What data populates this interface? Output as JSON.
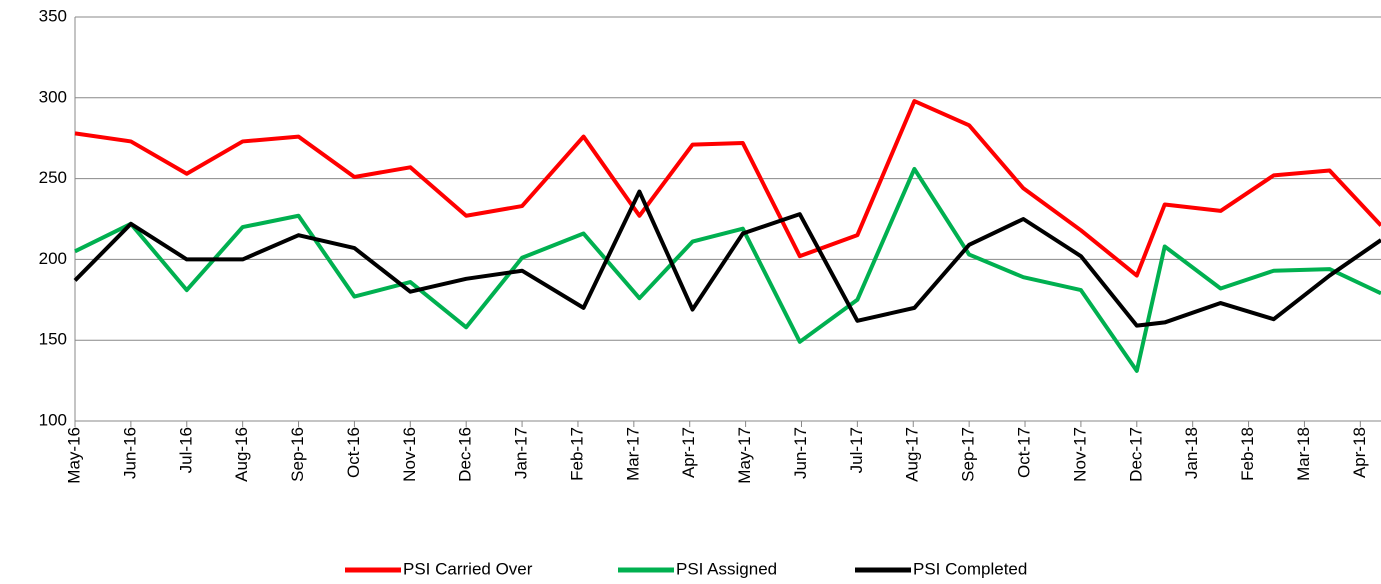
{
  "chart_data": {
    "type": "line",
    "x": [
      0,
      1,
      2,
      3,
      4,
      5,
      6,
      7,
      8,
      9.1,
      10.1,
      11.05,
      11.95,
      12.97,
      14,
      15.02,
      16,
      16.97,
      18,
      19,
      19.5,
      20.5,
      21.45,
      22.45,
      23.37
    ],
    "series": [
      {
        "name": "PSI Carried Over",
        "color": "#ff0000",
        "values": [
          278,
          273,
          253,
          273,
          276,
          251,
          257,
          227,
          233,
          276,
          227,
          271,
          272,
          202,
          215,
          298,
          283,
          244,
          218,
          190,
          234,
          230,
          252,
          255,
          221
        ]
      },
      {
        "name": "PSI Assigned",
        "color": "#00b050",
        "values": [
          205,
          222,
          181,
          220,
          227,
          177,
          186,
          158,
          201,
          216,
          176,
          211,
          219,
          149,
          175,
          256,
          203,
          189,
          181,
          131,
          208,
          182,
          193,
          194,
          179
        ]
      },
      {
        "name": "PSI Completed",
        "color": "#000000",
        "values": [
          187,
          222,
          200,
          200,
          215,
          207,
          180,
          188,
          193,
          170,
          242,
          169,
          216,
          228,
          162,
          170,
          209,
          225,
          202,
          159,
          161,
          173,
          163,
          190,
          212
        ]
      }
    ],
    "xlim": [
      0,
      23.37
    ],
    "xticks": [
      {
        "value": 0,
        "label": "May-16"
      },
      {
        "value": 1,
        "label": "Jun-16"
      },
      {
        "value": 2,
        "label": "Jul-16"
      },
      {
        "value": 3,
        "label": "Aug-16"
      },
      {
        "value": 4,
        "label": "Sep-16"
      },
      {
        "value": 5,
        "label": "Oct-16"
      },
      {
        "value": 6,
        "label": "Nov-16"
      },
      {
        "value": 7,
        "label": "Dec-16"
      },
      {
        "value": 8,
        "label": "Jan-17"
      },
      {
        "value": 9,
        "label": "Feb-17"
      },
      {
        "value": 10,
        "label": "Mar-17"
      },
      {
        "value": 11,
        "label": "Apr-17"
      },
      {
        "value": 12,
        "label": "May-17"
      },
      {
        "value": 13,
        "label": "Jun-17"
      },
      {
        "value": 14,
        "label": "Jul-17"
      },
      {
        "value": 15,
        "label": "Aug-17"
      },
      {
        "value": 16,
        "label": "Sep-17"
      },
      {
        "value": 17,
        "label": "Oct-17"
      },
      {
        "value": 18,
        "label": "Nov-17"
      },
      {
        "value": 19,
        "label": "Dec-17"
      },
      {
        "value": 20,
        "label": "Jan-18"
      },
      {
        "value": 21,
        "label": "Feb-18"
      },
      {
        "value": 22,
        "label": "Mar-18"
      },
      {
        "value": 23,
        "label": "Apr-18"
      }
    ],
    "ylim": [
      100,
      350
    ],
    "yticks": [
      100,
      150,
      200,
      250,
      300,
      350
    ],
    "grid": true,
    "legend": "bottom"
  }
}
